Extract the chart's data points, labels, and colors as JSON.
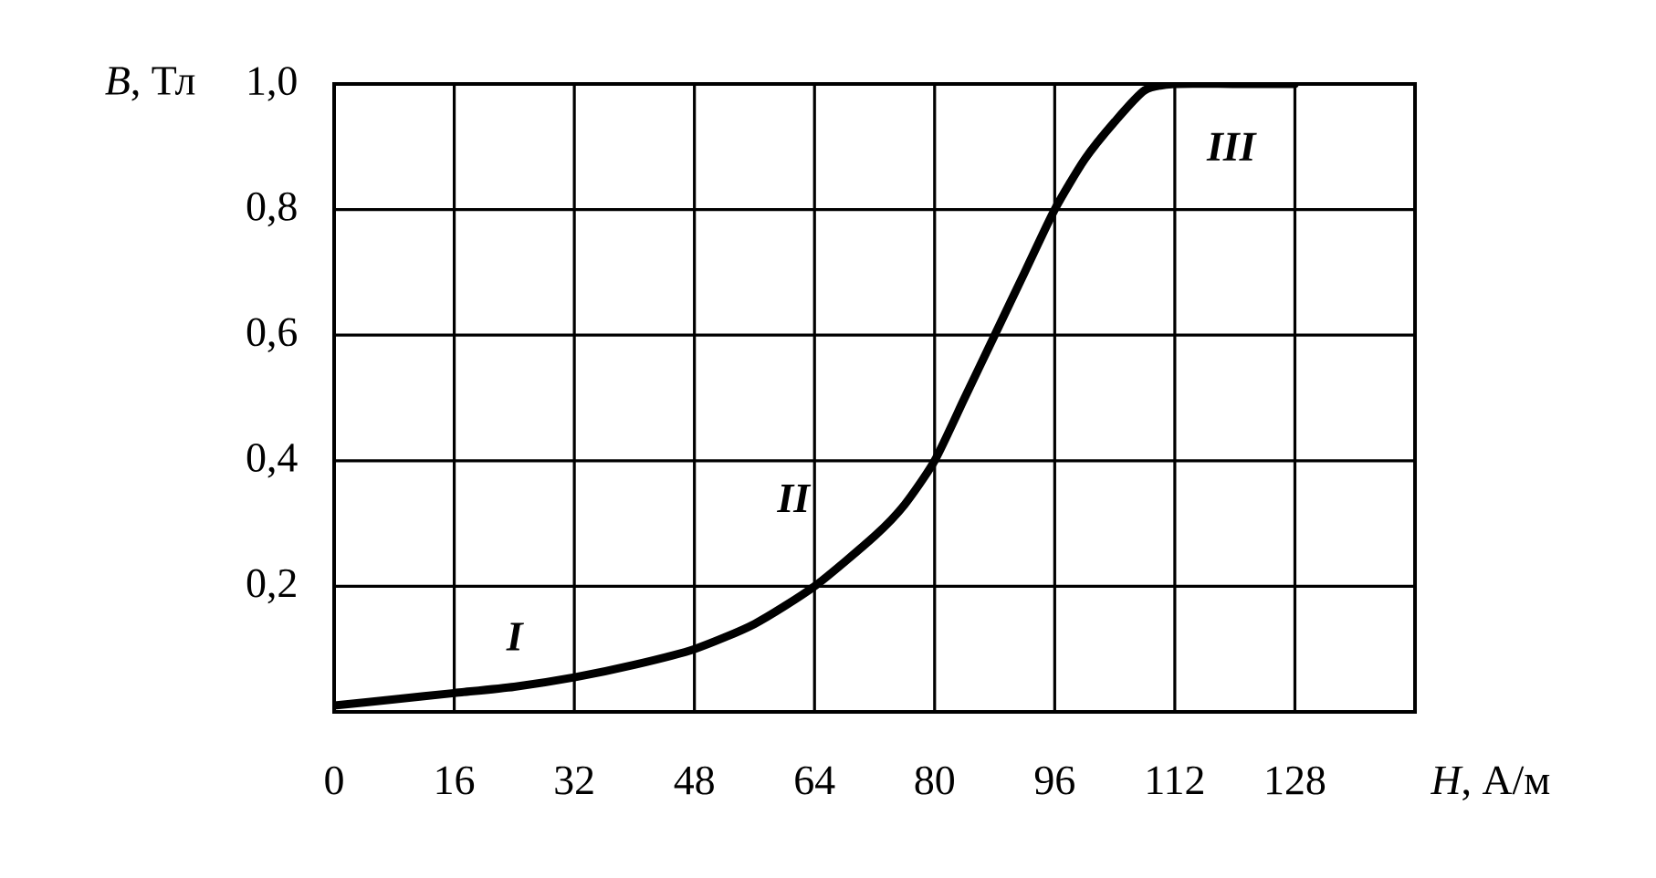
{
  "chart_data": {
    "type": "line",
    "xlabel": "*H*, А/м",
    "ylabel": "*B*, Тл",
    "x": [
      0,
      8,
      16,
      24,
      32,
      40,
      48,
      56,
      64,
      72,
      76,
      80,
      84,
      88,
      92,
      96,
      100,
      104,
      108,
      112,
      120,
      128
    ],
    "values": [
      0.01,
      0.02,
      0.03,
      0.04,
      0.055,
      0.075,
      0.1,
      0.14,
      0.2,
      0.28,
      0.33,
      0.4,
      0.5,
      0.6,
      0.7,
      0.8,
      0.88,
      0.94,
      0.99,
      1.0,
      1.0,
      1.0
    ],
    "color": "#000000",
    "xlim": [
      0,
      144
    ],
    "ylim": [
      0,
      1
    ],
    "xticks": [
      0,
      16,
      32,
      48,
      64,
      80,
      96,
      112,
      128
    ],
    "yticks": [
      {
        "value": 0.2,
        "label": "0,2"
      },
      {
        "value": 0.4,
        "label": "0,4"
      },
      {
        "value": 0.6,
        "label": "0,6"
      },
      {
        "value": 0.8,
        "label": "0,8"
      },
      {
        "value": 1.0,
        "label": "1,0"
      }
    ],
    "grid": true,
    "annotations": [
      "I",
      "II",
      "III"
    ]
  }
}
